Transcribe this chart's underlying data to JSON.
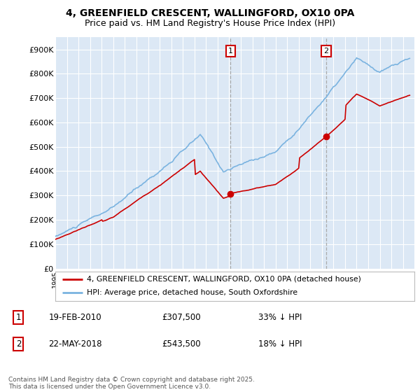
{
  "title_line1": "4, GREENFIELD CRESCENT, WALLINGFORD, OX10 0PA",
  "title_line2": "Price paid vs. HM Land Registry's House Price Index (HPI)",
  "background_color": "#ffffff",
  "plot_bg_color": "#dce8f5",
  "hpi_color": "#7ab3e0",
  "price_color": "#cc0000",
  "sale1_year_val": 2010.12,
  "sale1_price": 307500,
  "sale2_year_val": 2018.38,
  "sale2_price": 543500,
  "legend_house": "4, GREENFIELD CRESCENT, WALLINGFORD, OX10 0PA (detached house)",
  "legend_hpi": "HPI: Average price, detached house, South Oxfordshire",
  "table_row1": [
    "1",
    "19-FEB-2010",
    "£307,500",
    "33% ↓ HPI"
  ],
  "table_row2": [
    "2",
    "22-MAY-2018",
    "£543,500",
    "18% ↓ HPI"
  ],
  "footer": "Contains HM Land Registry data © Crown copyright and database right 2025.\nThis data is licensed under the Open Government Licence v3.0.",
  "ylim_min": 0,
  "ylim_max": 950000,
  "yticks": [
    0,
    100000,
    200000,
    300000,
    400000,
    500000,
    600000,
    700000,
    800000,
    900000
  ],
  "ytick_labels": [
    "£0",
    "£100K",
    "£200K",
    "£300K",
    "£400K",
    "£500K",
    "£600K",
    "£700K",
    "£800K",
    "£900K"
  ],
  "xmin": 1995,
  "xmax": 2026
}
